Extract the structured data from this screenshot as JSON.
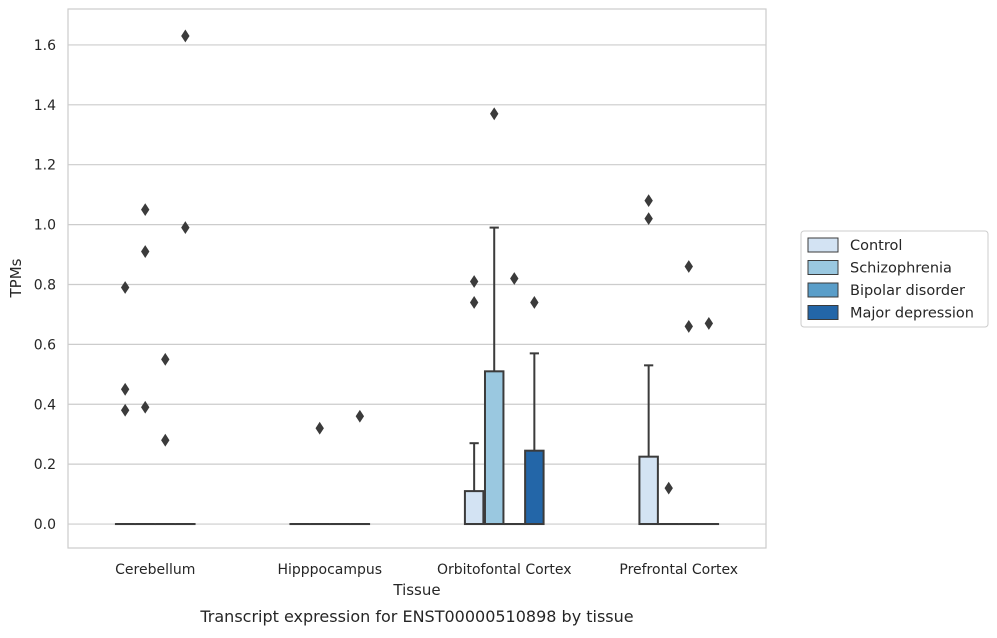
{
  "chart_data": {
    "type": "box",
    "caption": "Transcript expression for ENST00000510898 by tissue",
    "xlabel": "Tissue",
    "ylabel": "TPMs",
    "ylim": [
      -0.08,
      1.72
    ],
    "yticks": [
      "0.0",
      "0.2",
      "0.4",
      "0.6",
      "0.8",
      "1.0",
      "1.2",
      "1.4",
      "1.6"
    ],
    "grid": "horizontal",
    "legend_position": "right",
    "categories": [
      "Cerebellum",
      "Hipppocampus",
      "Orbitofontal Cortex",
      "Prefrontal Cortex"
    ],
    "series": [
      {
        "name": "Control",
        "color": "#d3e3f3",
        "boxes": [
          {
            "category": "Cerebellum",
            "q1": 0,
            "median": 0,
            "q3": 0,
            "whisker_low": 0,
            "whisker_high": 0,
            "outliers": [
              0.79,
              0.45,
              0.38
            ]
          },
          {
            "category": "Hipppocampus",
            "q1": 0,
            "median": 0,
            "q3": 0,
            "whisker_low": 0,
            "whisker_high": 0,
            "outliers": []
          },
          {
            "category": "Orbitofontal Cortex",
            "q1": 0,
            "median": 0,
            "q3": 0.11,
            "whisker_low": 0,
            "whisker_high": 0.27,
            "outliers": [
              0.81,
              0.74
            ]
          },
          {
            "category": "Prefrontal Cortex",
            "q1": 0,
            "median": 0,
            "q3": 0.225,
            "whisker_low": 0,
            "whisker_high": 0.53,
            "outliers": [
              1.08,
              1.02
            ]
          }
        ]
      },
      {
        "name": "Schizophrenia",
        "color": "#9ac8e0",
        "boxes": [
          {
            "category": "Cerebellum",
            "q1": 0,
            "median": 0,
            "q3": 0,
            "whisker_low": 0,
            "whisker_high": 0,
            "outliers": [
              1.05,
              0.91,
              0.39
            ]
          },
          {
            "category": "Hipppocampus",
            "q1": 0,
            "median": 0,
            "q3": 0,
            "whisker_low": 0,
            "whisker_high": 0,
            "outliers": [
              0.32
            ]
          },
          {
            "category": "Orbitofontal Cortex",
            "q1": 0,
            "median": 0,
            "q3": 0.51,
            "whisker_low": 0,
            "whisker_high": 0.99,
            "outliers": [
              1.37
            ]
          },
          {
            "category": "Prefrontal Cortex",
            "q1": 0,
            "median": 0,
            "q3": 0,
            "whisker_low": 0,
            "whisker_high": 0,
            "outliers": [
              0.12
            ]
          }
        ]
      },
      {
        "name": "Bipolar disorder",
        "color": "#5a9ec9",
        "boxes": [
          {
            "category": "Cerebellum",
            "q1": 0,
            "median": 0,
            "q3": 0,
            "whisker_low": 0,
            "whisker_high": 0,
            "outliers": [
              0.55,
              0.28
            ]
          },
          {
            "category": "Hipppocampus",
            "q1": 0,
            "median": 0,
            "q3": 0,
            "whisker_low": 0,
            "whisker_high": 0,
            "outliers": []
          },
          {
            "category": "Orbitofontal Cortex",
            "q1": 0,
            "median": 0,
            "q3": 0,
            "whisker_low": 0,
            "whisker_high": 0,
            "outliers": [
              0.82
            ]
          },
          {
            "category": "Prefrontal Cortex",
            "q1": 0,
            "median": 0,
            "q3": 0,
            "whisker_low": 0,
            "whisker_high": 0,
            "outliers": [
              0.86,
              0.66
            ]
          }
        ]
      },
      {
        "name": "Major depression",
        "color": "#2366a8",
        "boxes": [
          {
            "category": "Cerebellum",
            "q1": 0,
            "median": 0,
            "q3": 0,
            "whisker_low": 0,
            "whisker_high": 0,
            "outliers": [
              1.63,
              0.99
            ]
          },
          {
            "category": "Hipppocampus",
            "q1": 0,
            "median": 0,
            "q3": 0,
            "whisker_low": 0,
            "whisker_high": 0,
            "outliers": [
              0.36
            ]
          },
          {
            "category": "Orbitofontal Cortex",
            "q1": 0,
            "median": 0,
            "q3": 0.245,
            "whisker_low": 0,
            "whisker_high": 0.57,
            "outliers": [
              0.74
            ]
          },
          {
            "category": "Prefrontal Cortex",
            "q1": 0,
            "median": 0,
            "q3": 0,
            "whisker_low": 0,
            "whisker_high": 0,
            "outliers": [
              0.67
            ]
          }
        ]
      }
    ]
  }
}
